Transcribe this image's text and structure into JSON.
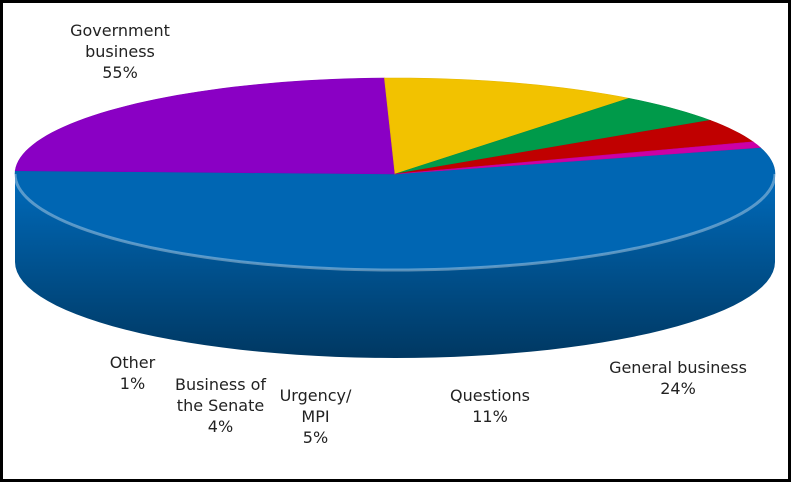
{
  "chart_data": {
    "type": "pie",
    "title": "",
    "slices": [
      {
        "label_lines": [
          "Government",
          "business"
        ],
        "value_label": "55%",
        "value": 55,
        "color": "#0066B3"
      },
      {
        "label_lines": [
          "General business"
        ],
        "value_label": "24%",
        "value": 24,
        "color": "#8A00C4"
      },
      {
        "label_lines": [
          "Questions"
        ],
        "value_label": "11%",
        "value": 11,
        "color": "#F2C200"
      },
      {
        "label_lines": [
          "Urgency/",
          "MPI"
        ],
        "value_label": "5%",
        "value": 5,
        "color": "#009A4A"
      },
      {
        "label_lines": [
          "Business of",
          "the Senate"
        ],
        "value_label": "4%",
        "value": 4,
        "color": "#C00000"
      },
      {
        "label_lines": [
          "Other"
        ],
        "value_label": "1%",
        "value": 1,
        "color": "#CC00A6"
      }
    ]
  }
}
